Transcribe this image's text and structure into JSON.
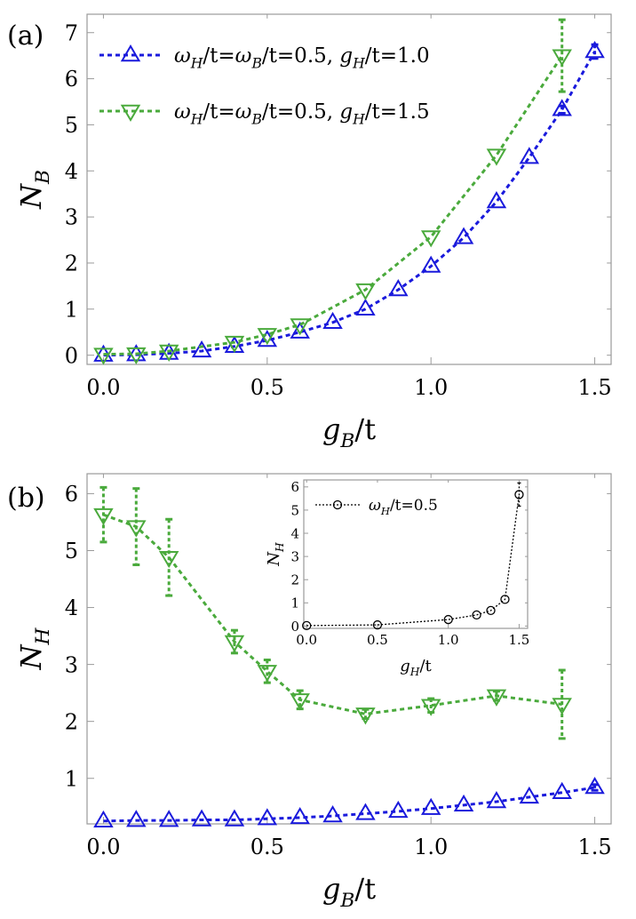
{
  "chart_data": [
    {
      "panel_label": "(a)",
      "type": "line",
      "xlabel": "g",
      "xlabel_sub": "B",
      "xlabel_suffix": "/t",
      "ylabel": "N",
      "ylabel_sub": "B",
      "xlim": [
        -0.05,
        1.55
      ],
      "ylim": [
        -0.2,
        7.4
      ],
      "xticks": [
        0.0,
        0.5,
        1.0,
        1.5
      ],
      "xtick_labels": [
        "0.0",
        "0.5",
        "1.0",
        "1.5"
      ],
      "yticks": [
        0,
        1,
        2,
        3,
        4,
        5,
        6,
        7
      ],
      "ytick_labels": [
        "0",
        "1",
        "2",
        "3",
        "4",
        "5",
        "6",
        "7"
      ],
      "legend_position": "top-left",
      "series": [
        {
          "name": "ωH/t=ωB/t=0.5, gH/t=1.0",
          "legend_parts": [
            "ω",
            "H",
            "/t=",
            "ω",
            "B",
            "/t=0.5, ",
            "g",
            "H",
            "/t=1.0"
          ],
          "color": "#1a1adc",
          "marker": "triangle-up",
          "x": [
            0.0,
            0.1,
            0.2,
            0.3,
            0.4,
            0.5,
            0.6,
            0.7,
            0.8,
            0.9,
            1.0,
            1.1,
            1.2,
            1.3,
            1.4,
            1.5
          ],
          "y": [
            0.0,
            0.01,
            0.04,
            0.09,
            0.19,
            0.32,
            0.5,
            0.71,
            1.0,
            1.42,
            1.93,
            2.55,
            3.33,
            4.29,
            5.33,
            6.59
          ],
          "err": [
            0,
            0,
            0,
            0,
            0,
            0,
            0,
            0,
            0,
            0,
            0,
            0,
            0,
            0,
            0.08,
            0.15
          ]
        },
        {
          "name": "ωH/t=ωB/t=0.5, gH/t=1.5",
          "legend_parts": [
            "ω",
            "H",
            "/t=",
            "ω",
            "B",
            "/t=0.5, ",
            "g",
            "H",
            "/t=1.5"
          ],
          "color": "#4aaa3c",
          "marker": "triangle-down",
          "x": [
            0.0,
            0.1,
            0.2,
            0.4,
            0.5,
            0.6,
            0.8,
            1.0,
            1.2,
            1.4
          ],
          "y": [
            0.02,
            0.03,
            0.09,
            0.28,
            0.45,
            0.66,
            1.42,
            2.57,
            4.34,
            6.5
          ],
          "err": [
            0,
            0,
            0,
            0,
            0,
            0,
            0,
            0,
            0,
            0.78
          ]
        }
      ]
    },
    {
      "panel_label": "(b)",
      "type": "line",
      "xlabel": "g",
      "xlabel_sub": "B",
      "xlabel_suffix": "/t",
      "ylabel": "N",
      "ylabel_sub": "H",
      "xlim": [
        -0.05,
        1.55
      ],
      "ylim": [
        0.2,
        6.35
      ],
      "xticks": [
        0.0,
        0.5,
        1.0,
        1.5
      ],
      "xtick_labels": [
        "0.0",
        "0.5",
        "1.0",
        "1.5"
      ],
      "yticks": [
        1,
        2,
        3,
        4,
        5,
        6
      ],
      "ytick_labels": [
        "1",
        "2",
        "3",
        "4",
        "5",
        "6"
      ],
      "series": [
        {
          "name": "gH/t=1.0",
          "color": "#1a1adc",
          "marker": "triangle-up",
          "x": [
            0.0,
            0.1,
            0.2,
            0.3,
            0.4,
            0.5,
            0.6,
            0.7,
            0.8,
            0.9,
            1.0,
            1.1,
            1.2,
            1.3,
            1.4,
            1.5
          ],
          "y": [
            0.25,
            0.26,
            0.26,
            0.27,
            0.27,
            0.29,
            0.31,
            0.34,
            0.38,
            0.42,
            0.47,
            0.53,
            0.59,
            0.67,
            0.75,
            0.84
          ],
          "err": [
            0,
            0,
            0,
            0,
            0,
            0,
            0,
            0,
            0,
            0,
            0,
            0,
            0,
            0,
            0,
            0.05
          ]
        },
        {
          "name": "gH/t=1.5",
          "color": "#4aaa3c",
          "marker": "triangle-down",
          "x": [
            0.0,
            0.1,
            0.2,
            0.4,
            0.5,
            0.6,
            0.8,
            1.0,
            1.2,
            1.4
          ],
          "y": [
            5.63,
            5.42,
            4.88,
            3.4,
            2.88,
            2.38,
            2.13,
            2.28,
            2.45,
            2.3
          ],
          "err": [
            0.48,
            0.67,
            0.67,
            0.2,
            0.2,
            0.16,
            0.08,
            0.12,
            0.08,
            0.6
          ]
        }
      ],
      "inset": {
        "type": "line",
        "xlabel": "g",
        "xlabel_sub": "H",
        "xlabel_suffix": "/t",
        "ylabel": "N",
        "ylabel_sub": "H",
        "xlim": [
          -0.02,
          1.56
        ],
        "ylim": [
          -0.1,
          6.3
        ],
        "xticks": [
          0.0,
          0.5,
          1.0,
          1.5
        ],
        "xtick_labels": [
          "0.0",
          "0.5",
          "1.0",
          "1.5"
        ],
        "yticks": [
          0,
          1,
          2,
          3,
          4,
          5,
          6
        ],
        "ytick_labels": [
          "0",
          "1",
          "2",
          "3",
          "4",
          "5",
          "6"
        ],
        "series": [
          {
            "name": "ωH/t=0.5",
            "legend_parts": [
              "ω",
              "H",
              "/t=0.5"
            ],
            "color": "#000000",
            "marker": "circle",
            "x": [
              0.0,
              0.5,
              1.0,
              1.2,
              1.3,
              1.4,
              1.5
            ],
            "y": [
              0.02,
              0.05,
              0.28,
              0.48,
              0.67,
              1.15,
              5.67
            ],
            "err": [
              0,
              0,
              0,
              0,
              0,
              0,
              0.5
            ]
          }
        ]
      }
    }
  ]
}
